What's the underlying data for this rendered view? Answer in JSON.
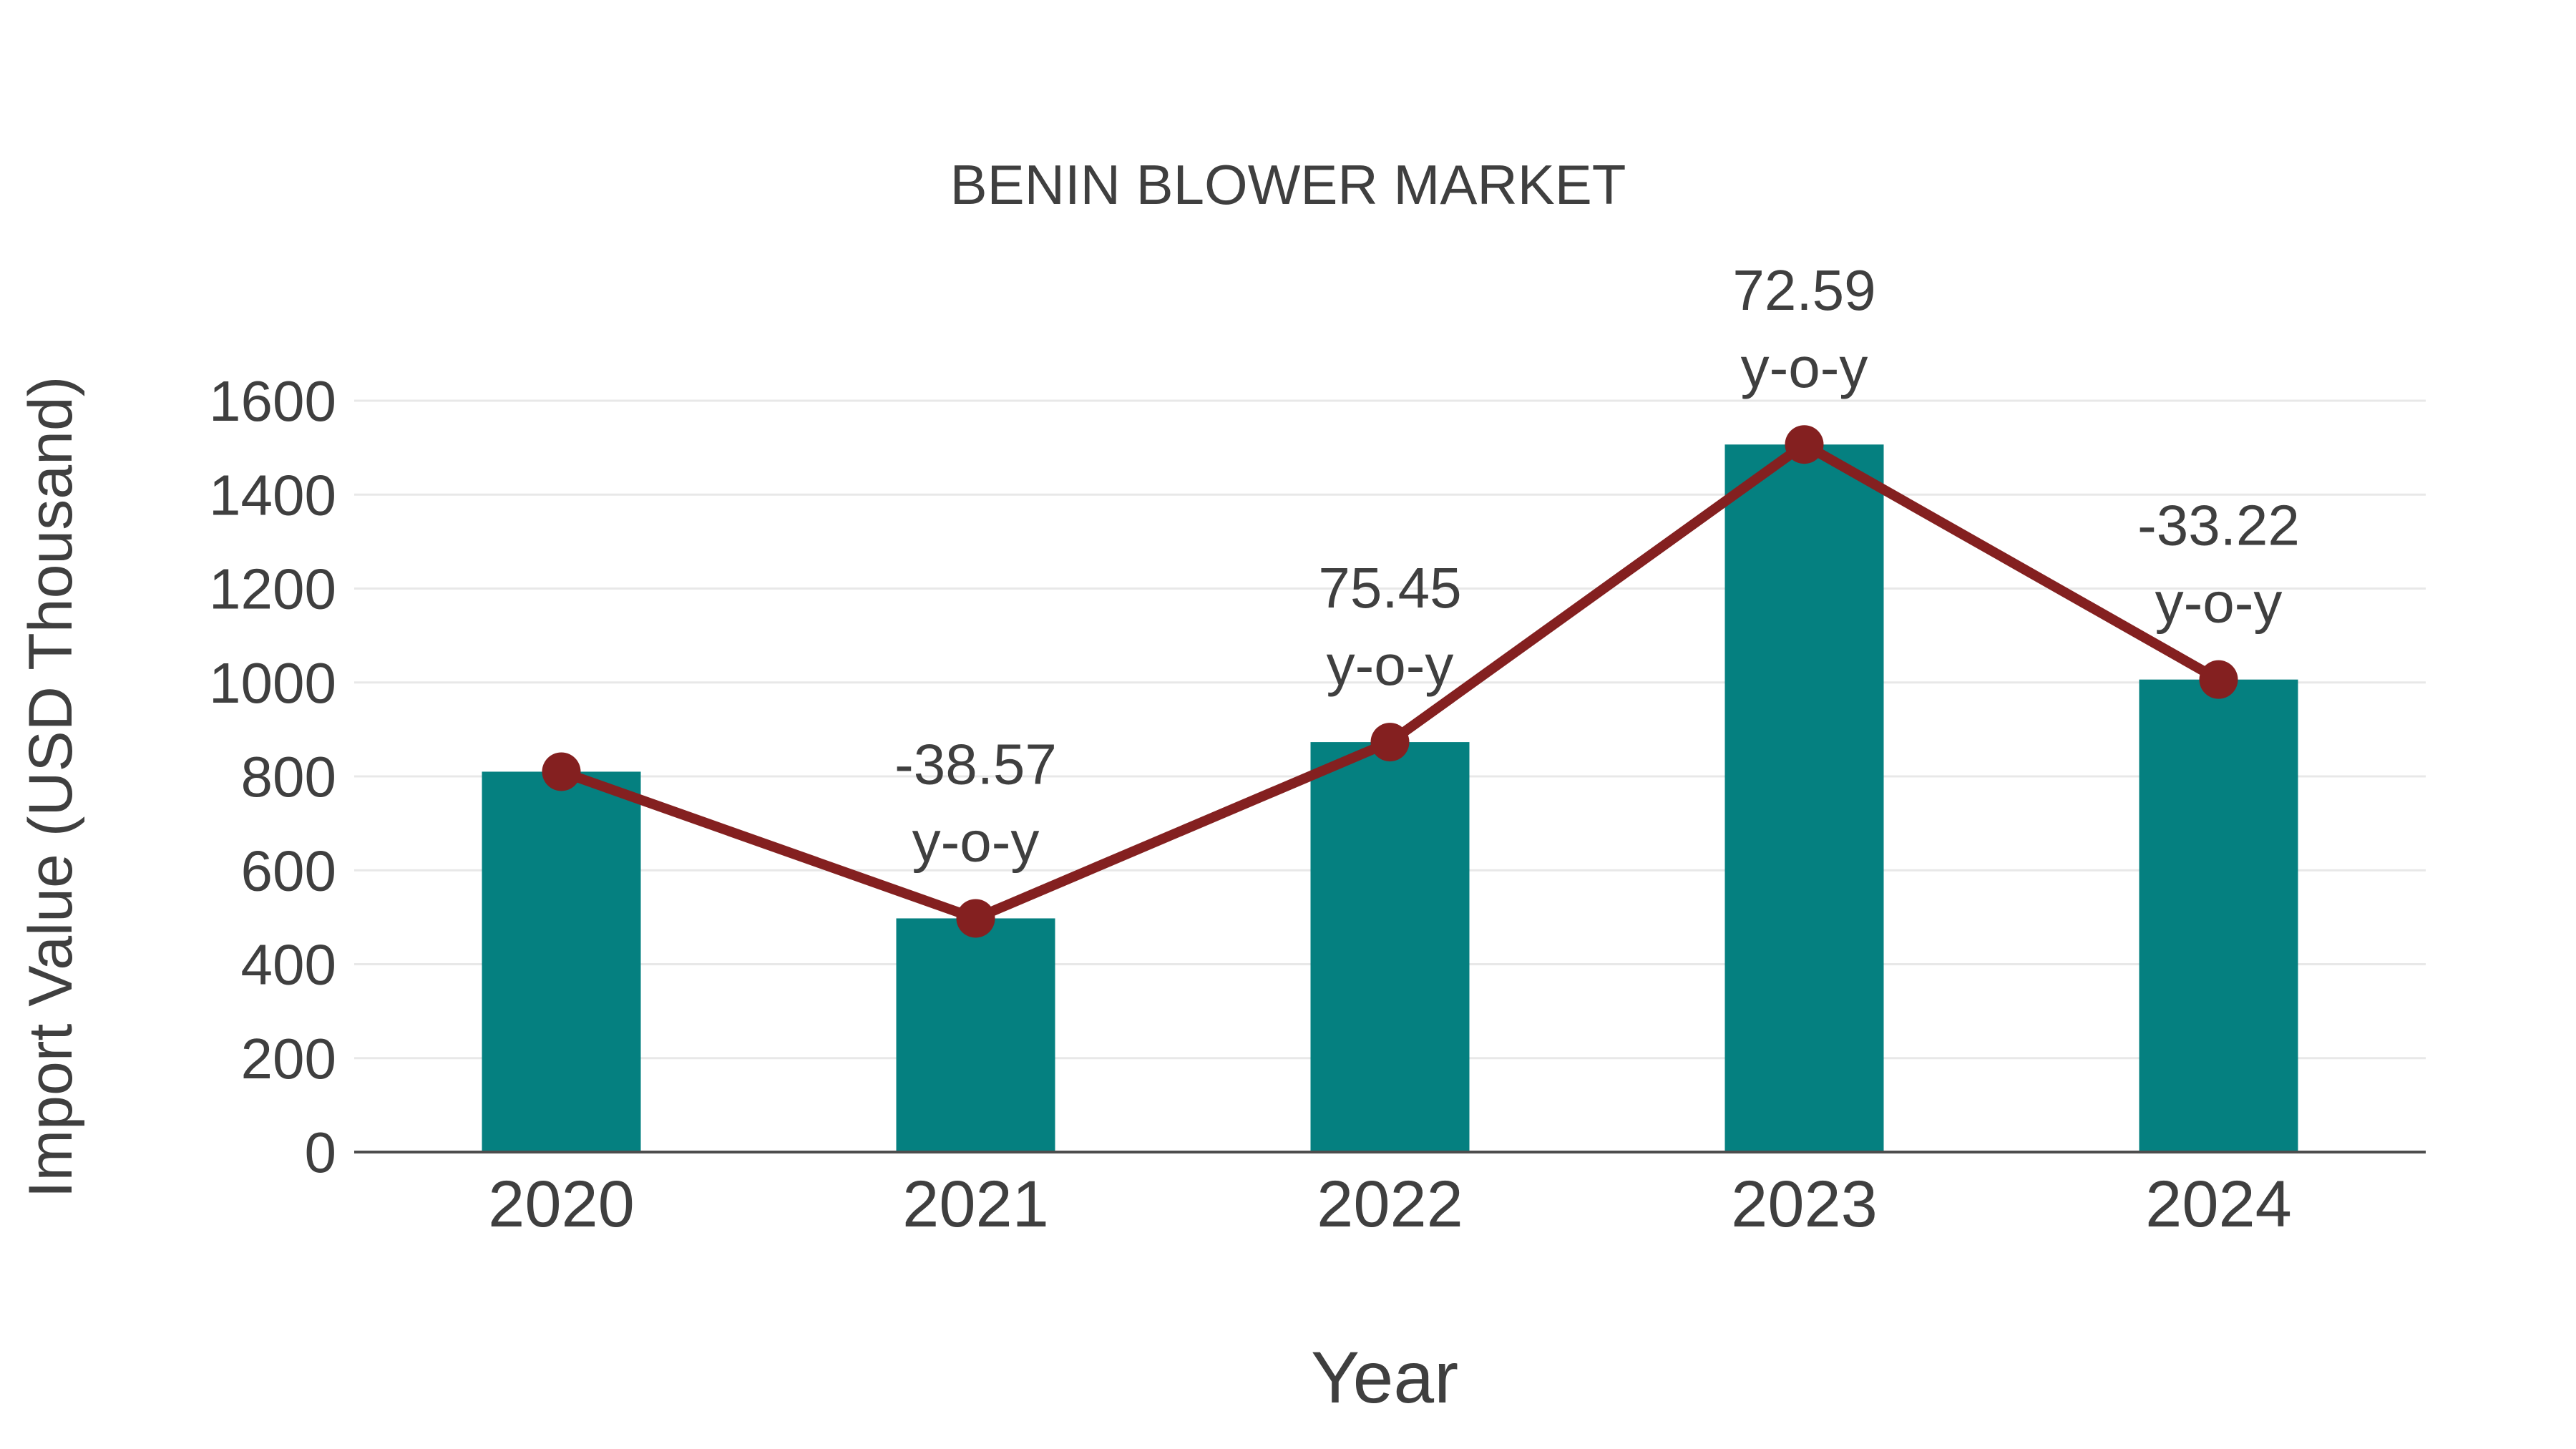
{
  "page": {
    "background": "#ffffff"
  },
  "chart_data": {
    "type": "bar",
    "title": "BENIN BLOWER MARKET",
    "xlabel": "Year",
    "ylabel": "Import Value (USD Thousand)",
    "categories": [
      "2020",
      "2021",
      "2022",
      "2023",
      "2024"
    ],
    "series": [
      {
        "name": "Import Value (USD Thousand)",
        "type": "bar",
        "color": "#058080",
        "values": [
          810,
          497.6,
          873,
          1506.7,
          1006.2
        ]
      },
      {
        "name": "y-o-y change",
        "type": "line",
        "color": "#842020",
        "values": [
          810,
          497.6,
          873,
          1506.7,
          1006.2
        ],
        "annotations": [
          null,
          "-38.57",
          "75.45",
          "72.59",
          "-33.22"
        ],
        "annotation_suffix": "y-o-y"
      }
    ],
    "ylim": [
      0,
      1600
    ],
    "y_ticks": [
      0,
      200,
      400,
      600,
      800,
      1000,
      1200,
      1400,
      1600
    ],
    "grid": true,
    "legend": "none",
    "colors": {
      "grid": "#e8e8e8",
      "axis": "#4d4d4d",
      "text": "#3f3f3f",
      "background": "#ffffff"
    }
  }
}
